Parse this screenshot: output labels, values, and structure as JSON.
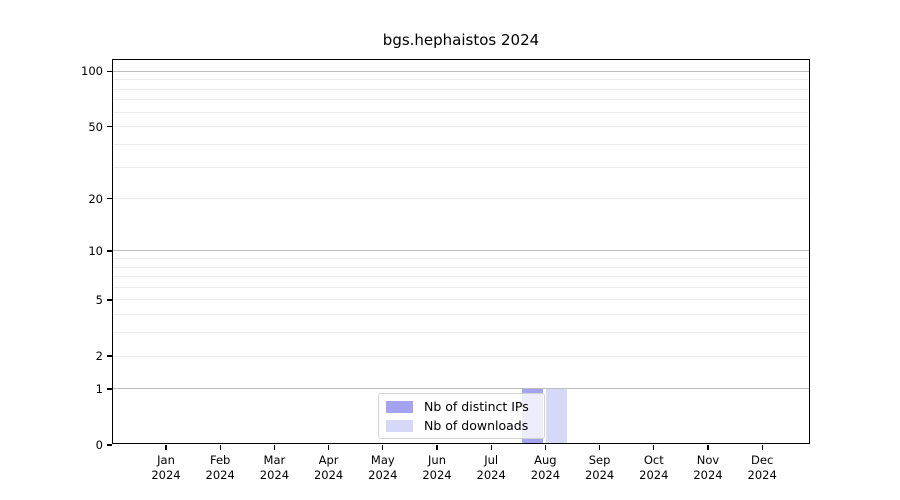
{
  "title": "bgs.hephaistos 2024",
  "chart_data": {
    "type": "bar",
    "title": "bgs.hephaistos 2024",
    "categories": [
      "Jan",
      "Feb",
      "Mar",
      "Apr",
      "May",
      "Jun",
      "Jul",
      "Aug",
      "Sep",
      "Oct",
      "Nov",
      "Dec"
    ],
    "category_year": "2024",
    "series": [
      {
        "name": "Nb of distinct IPs",
        "color": "#a3a3ef",
        "values": [
          0,
          0,
          0,
          0,
          0,
          0,
          0,
          1,
          0,
          0,
          0,
          0
        ]
      },
      {
        "name": "Nb of downloads",
        "color": "#d7d7f7",
        "values": [
          0,
          0,
          0,
          0,
          0,
          0,
          0,
          1,
          0,
          0,
          0,
          0
        ]
      }
    ],
    "yscale": "log10(1+y)",
    "ylim": [
      0,
      113
    ],
    "yticks": [
      0,
      1,
      2,
      5,
      10,
      20,
      50,
      100
    ],
    "major_gridlines": [
      1,
      10,
      100
    ],
    "minor_gridlines": [
      2,
      3,
      4,
      5,
      6,
      7,
      8,
      9,
      20,
      30,
      40,
      50,
      60,
      70,
      80,
      90
    ],
    "grid": true,
    "legend_position": "lower center"
  },
  "colors": {
    "spine": "#000000",
    "major_grid": "#bdbdbd",
    "minor_grid": "#ececec",
    "background": "#ffffff"
  }
}
